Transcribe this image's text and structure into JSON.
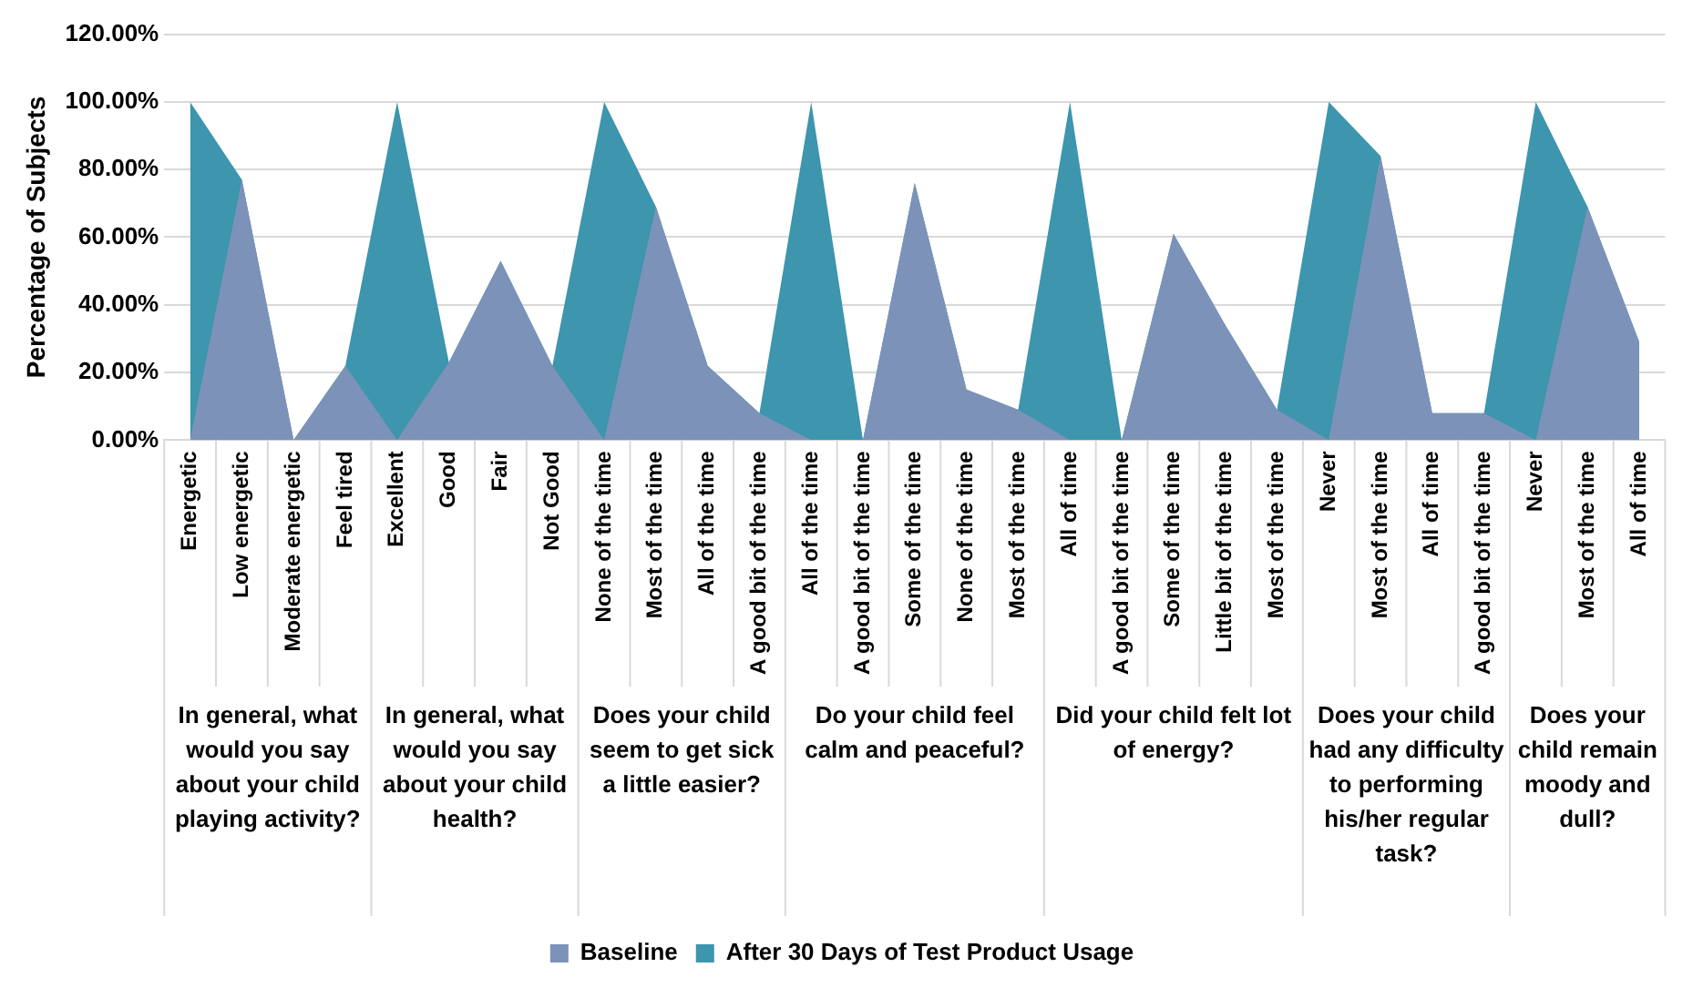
{
  "chart_data": {
    "type": "area",
    "categories": [
      "Energetic",
      "Low energetic",
      "Moderate energetic",
      "Feel tired",
      "Excellent",
      "Good",
      "Fair",
      "Not Good",
      "None of the time",
      "Most of the time",
      "All of the time",
      "A good bit of the time",
      "All of the time",
      "A good bit of the time",
      "Some of the time",
      "None of the time",
      "Most of the time",
      "All of time",
      "A good bit of the time",
      "Some of the time",
      "Little bit of the time",
      "Most of the time",
      "Never",
      "Most of the time",
      "All of time",
      "A good bit of the time",
      "Never",
      "Most of the time",
      "All of time"
    ],
    "series": [
      {
        "name": "Baseline",
        "color": "#7d92b8",
        "values": [
          0,
          77,
          0,
          22,
          0,
          23,
          53,
          22,
          0,
          69,
          22,
          8,
          0,
          0,
          76,
          15,
          9,
          0,
          0,
          61,
          34,
          9,
          0,
          84,
          8,
          8,
          0,
          69,
          29
        ]
      },
      {
        "name": "After 30 Days of Test Product Usage",
        "color": "#3d95ae",
        "values": [
          100,
          77,
          0,
          22,
          100,
          23,
          53,
          22,
          100,
          69,
          22,
          8,
          100,
          0,
          76,
          15,
          9,
          100,
          0,
          61,
          34,
          9,
          100,
          84,
          8,
          8,
          100,
          69,
          29
        ]
      }
    ],
    "ylabel": "Percentage of Subjects",
    "ylim": [
      0,
      120
    ],
    "yticks": [
      {
        "value": 0,
        "label": "0.00%"
      },
      {
        "value": 20,
        "label": "20.00%"
      },
      {
        "value": 40,
        "label": "40.00%"
      },
      {
        "value": 60,
        "label": "60.00%"
      },
      {
        "value": 80,
        "label": "80.00%"
      },
      {
        "value": 100,
        "label": "100.00%"
      },
      {
        "value": 120,
        "label": "120.00%"
      }
    ],
    "annotations": [
      "In general, what would you say about your child playing activity?",
      "In general, what would you say about your child health?",
      "Does your child seem to get sick a little easier?",
      "Do your child feel calm and peaceful?",
      "Did your child felt lot of energy?",
      "Does your child had any difficulty to performing his/her regular task?",
      "Does your child remain moody and dull?"
    ],
    "grid": "y",
    "legend": "bottom"
  }
}
